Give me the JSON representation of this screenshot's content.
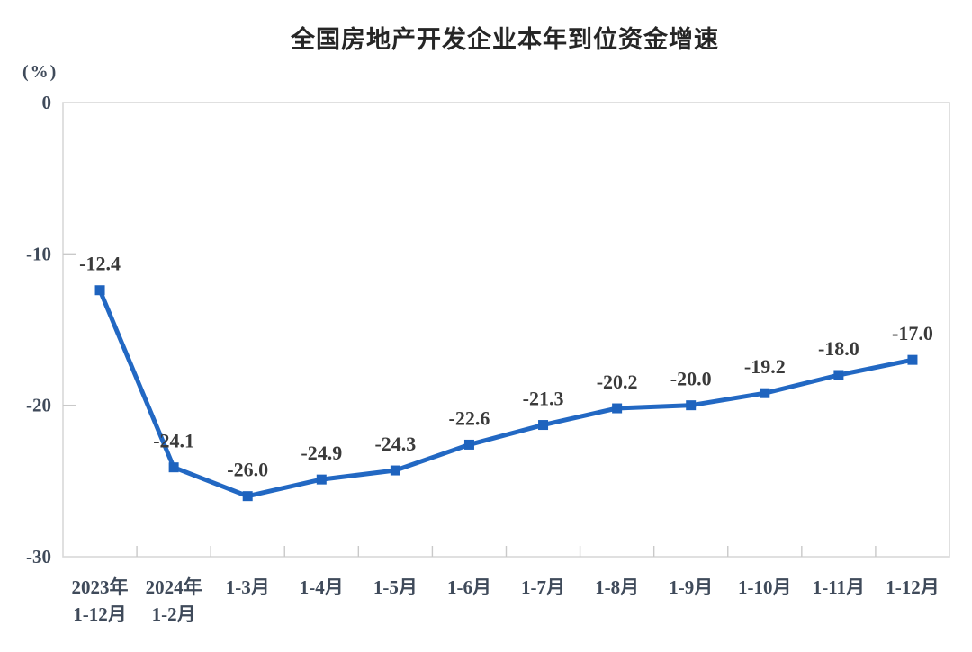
{
  "page": {
    "background": "#ffffff"
  },
  "chart_data": {
    "type": "line",
    "title": "全国房地产开发企业本年到位资金增速",
    "ylabel": "(%)",
    "xlabel": "",
    "categories": [
      "2023年\n1-12月",
      "2024年\n1-2月",
      "1-3月",
      "1-4月",
      "1-5月",
      "1-6月",
      "1-7月",
      "1-8月",
      "1-9月",
      "1-10月",
      "1-11月",
      "1-12月"
    ],
    "values": [
      -12.4,
      -24.1,
      -26.0,
      -24.9,
      -24.3,
      -22.6,
      -21.3,
      -20.2,
      -20.0,
      -19.2,
      -18.0,
      -17.0
    ],
    "data_labels": [
      "-12.4",
      "-24.1",
      "-26.0",
      "-24.9",
      "-24.3",
      "-22.6",
      "-21.3",
      "-20.2",
      "-20.0",
      "-19.2",
      "-18.0",
      "-17.0"
    ],
    "ylim": [
      -30,
      0
    ],
    "yticks": [
      0,
      -10,
      -20,
      -30
    ],
    "grid": false,
    "legend": "none",
    "marker": "square",
    "colors": {
      "line": "#2268C3",
      "marker": "#1E63BE",
      "axis_frame": "#D9D9D9",
      "tick_mark": "#C9C9C9",
      "tick_label": "#3F4A5A",
      "data_label": "#3A3A3A",
      "title": "#262626"
    }
  }
}
